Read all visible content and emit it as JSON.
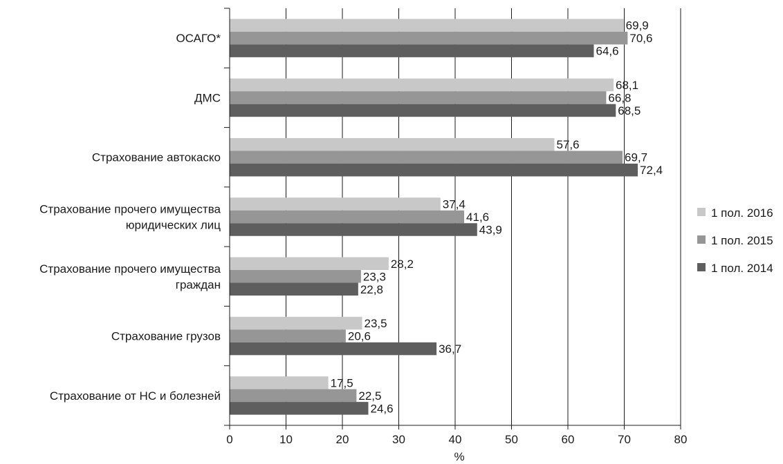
{
  "chart_data": {
    "type": "bar",
    "orientation": "horizontal",
    "categories": [
      [
        "ОСАГО*"
      ],
      [
        "ДМС"
      ],
      [
        "Страхование автокаско"
      ],
      [
        "Страхование прочего имущества",
        "юридических лиц"
      ],
      [
        "Страхование прочего имущества",
        "граждан"
      ],
      [
        "Страхование грузов"
      ],
      [
        "Страхование от НС и болезней"
      ]
    ],
    "series": [
      {
        "name": "1 пол. 2016",
        "color": "#c8c8c8",
        "values": [
          69.9,
          68.1,
          57.6,
          37.4,
          28.2,
          23.5,
          17.5
        ],
        "labels": [
          "69,9",
          "68,1",
          "57,6",
          "37,4",
          "28,2",
          "23,5",
          "17,5"
        ]
      },
      {
        "name": "1 пол. 2015",
        "color": "#969696",
        "values": [
          70.6,
          66.8,
          69.7,
          41.6,
          23.3,
          20.6,
          22.5
        ],
        "labels": [
          "70,6",
          "66,8",
          "69,7",
          "41,6",
          "23,3",
          "20,6",
          "22,5"
        ]
      },
      {
        "name": "1 пол. 2014",
        "color": "#5e5e5e",
        "values": [
          64.6,
          68.5,
          72.4,
          43.9,
          22.8,
          36.7,
          24.6
        ],
        "labels": [
          "64,6",
          "68,5",
          "72,4",
          "43,9",
          "22,8",
          "36,7",
          "24,6"
        ]
      }
    ],
    "xlim": [
      0,
      80
    ],
    "xticks": [
      0,
      10,
      20,
      30,
      40,
      50,
      60,
      70,
      80
    ],
    "xlabel": "%",
    "title": "",
    "grid": "vertical",
    "legend": "right"
  }
}
